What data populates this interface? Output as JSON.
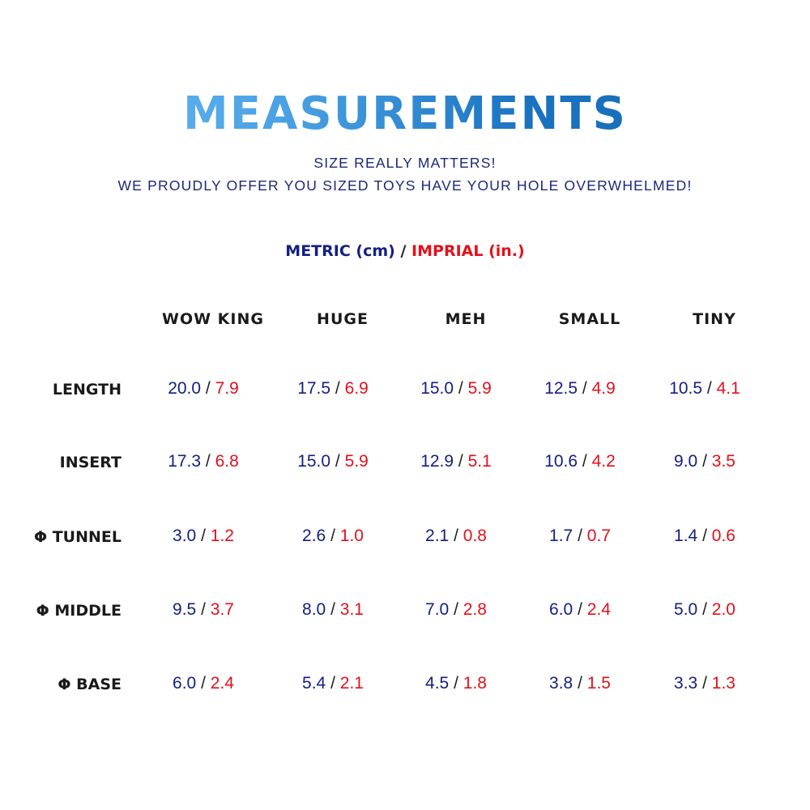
{
  "header": {
    "title": "MEASUREMENTS",
    "subtitle_line1": "SIZE REALLY MATTERS!",
    "subtitle_line2": "WE PROUDLY OFFER YOU SIZED TOYS HAVE YOUR HOLE OVERWHELMED!"
  },
  "units": {
    "metric": "METRIC (cm)",
    "separator": "/",
    "imperial": "IMPRIAL (in.)"
  },
  "colors": {
    "metric": "#142080",
    "imperial": "#e3101b",
    "title_light": "#72c1f2",
    "title_dark": "#1366ad"
  },
  "table": {
    "columns": [
      "WOW KING",
      "HUGE",
      "MEH",
      "SMALL",
      "TINY"
    ],
    "rows": [
      {
        "label": "LENGTH",
        "cells": [
          [
            "20.0",
            "7.9"
          ],
          [
            "17.5",
            "6.9"
          ],
          [
            "15.0",
            "5.9"
          ],
          [
            "12.5",
            "4.9"
          ],
          [
            "10.5",
            "4.1"
          ]
        ]
      },
      {
        "label": "INSERT",
        "cells": [
          [
            "17.3",
            "6.8"
          ],
          [
            "15.0",
            "5.9"
          ],
          [
            "12.9",
            "5.1"
          ],
          [
            "10.6",
            "4.2"
          ],
          [
            "9.0",
            "3.5"
          ]
        ]
      },
      {
        "label": "Φ TUNNEL",
        "cells": [
          [
            "3.0",
            "1.2"
          ],
          [
            "2.6",
            "1.0"
          ],
          [
            "2.1",
            "0.8"
          ],
          [
            "1.7",
            "0.7"
          ],
          [
            "1.4",
            "0.6"
          ]
        ]
      },
      {
        "label": "Φ MIDDLE",
        "cells": [
          [
            "9.5",
            "3.7"
          ],
          [
            "8.0",
            "3.1"
          ],
          [
            "7.0",
            "2.8"
          ],
          [
            "6.0",
            "2.4"
          ],
          [
            "5.0",
            "2.0"
          ]
        ]
      },
      {
        "label": "Φ BASE",
        "cells": [
          [
            "6.0",
            "2.4"
          ],
          [
            "5.4",
            "2.1"
          ],
          [
            "4.5",
            "1.8"
          ],
          [
            "3.8",
            "1.5"
          ],
          [
            "3.3",
            "1.3"
          ]
        ]
      }
    ]
  }
}
